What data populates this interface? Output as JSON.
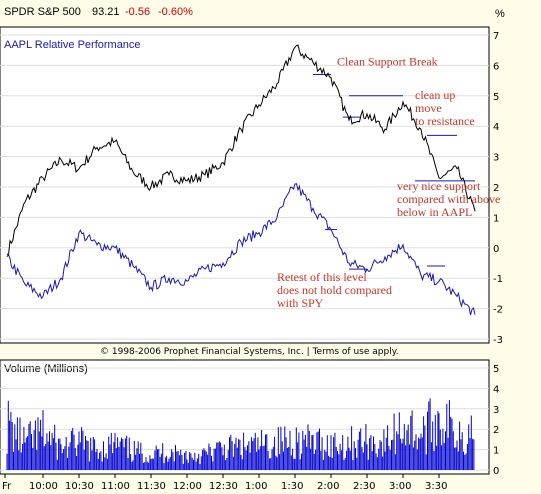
{
  "header": {
    "symbol": "SPDR S&P 500",
    "last": "93.21",
    "change": "-0.56",
    "change_pct": "-0.60%",
    "unit": "%"
  },
  "copyright": "© 1998-2006 Prophet Financial Systems, Inc. | Terms of use apply.",
  "colors": {
    "background": "#fffde9",
    "spy_line": "#1a1aa6",
    "aapl_line": "#000000",
    "volume_bars": "#0000cc",
    "annotation": "#c0392b",
    "level_lines": "#1a1aa6"
  },
  "chart_data": [
    {
      "type": "line",
      "title": "",
      "ylabel": "%",
      "ylim": [
        -3,
        7
      ],
      "yticks": [
        "7",
        "6",
        "5",
        "4",
        "3",
        "2",
        "1",
        "0",
        "-1",
        "-2",
        "-3"
      ],
      "xticks": [
        "Fr",
        "10:00",
        "10:30",
        "11:00",
        "11:30",
        "12:00",
        "12:30",
        "1:00",
        "1:30",
        "2:00",
        "2:30",
        "3:00",
        "3:30"
      ],
      "x": [
        "9:30",
        "9:45",
        "10:00",
        "10:15",
        "10:30",
        "10:45",
        "11:00",
        "11:15",
        "11:30",
        "11:45",
        "12:00",
        "12:15",
        "12:30",
        "12:45",
        "1:00",
        "1:15",
        "1:30",
        "1:45",
        "2:00",
        "2:15",
        "2:30",
        "2:45",
        "3:00",
        "3:15",
        "3:30",
        "3:45",
        "4:00"
      ],
      "series": [
        {
          "name": "AAPL Relative Performance",
          "color": "#000000",
          "values": [
            -0.2,
            1.5,
            2.3,
            2.9,
            2.6,
            3.3,
            3.5,
            2.5,
            2.0,
            2.4,
            2.2,
            2.4,
            2.8,
            3.9,
            4.7,
            5.4,
            6.6,
            6.1,
            5.6,
            4.2,
            4.4,
            3.9,
            4.8,
            3.9,
            2.3,
            2.6,
            1.2
          ]
        },
        {
          "name": "",
          "color": "#1a1aa6",
          "values": [
            -0.3,
            -1.2,
            -1.6,
            -1.0,
            0.5,
            0.1,
            0.0,
            -0.6,
            -1.3,
            -1.0,
            -1.1,
            -0.7,
            -0.5,
            0.2,
            0.5,
            1.0,
            2.1,
            1.3,
            0.6,
            -0.5,
            -0.7,
            -0.3,
            0.1,
            -0.9,
            -1.1,
            -1.6,
            -2.2
          ]
        }
      ],
      "levels": [
        {
          "y": 5.7,
          "x_start": "1:45",
          "x_end": "2:00"
        },
        {
          "y": 5.0,
          "x_start": "2:15",
          "x_end": "3:00"
        },
        {
          "y": 4.3,
          "x_start": "2:10",
          "x_end": "2:25"
        },
        {
          "y": 3.7,
          "x_start": "3:20",
          "x_end": "3:45"
        },
        {
          "y": 2.2,
          "x_start": "3:10",
          "x_end": "4:00"
        },
        {
          "y": 0.6,
          "x_start": "1:55",
          "x_end": "2:05"
        },
        {
          "y": -0.6,
          "x_start": "3:20",
          "x_end": "3:35"
        },
        {
          "y": -0.7,
          "x_start": "2:15",
          "x_end": "2:30"
        }
      ],
      "annotations": [
        {
          "lines": [
            "Clean Support Break"
          ],
          "x": "2:05",
          "y": 6.0
        },
        {
          "lines": [
            "clean up",
            "move",
            "to resistance"
          ],
          "x": "3:10",
          "y": 4.9
        },
        {
          "lines": [
            "very nice support",
            "compared with above",
            "below in AAPL"
          ],
          "x": "2:55",
          "y": 1.9
        },
        {
          "lines": [
            "Retest of this level",
            "does not hold compared",
            "with SPY"
          ],
          "x": "1:15",
          "y": -1.1
        }
      ]
    },
    {
      "type": "bar",
      "title": "Volume (Millions)",
      "ylim": [
        0,
        5
      ],
      "yticks": [
        "5",
        "4",
        "3",
        "2",
        "1",
        "0"
      ],
      "x": [
        "9:30",
        "9:45",
        "10:00",
        "10:15",
        "10:30",
        "10:45",
        "11:00",
        "11:15",
        "11:30",
        "11:45",
        "12:00",
        "12:15",
        "12:30",
        "12:45",
        "1:00",
        "1:15",
        "1:30",
        "1:45",
        "2:00",
        "2:15",
        "2:30",
        "2:45",
        "3:00",
        "3:15",
        "3:30",
        "3:45",
        "4:00"
      ],
      "values": [
        3.2,
        1.9,
        2.6,
        1.6,
        1.9,
        1.4,
        1.8,
        1.3,
        1.1,
        1.3,
        1.0,
        1.1,
        1.5,
        1.6,
        1.7,
        1.9,
        2.1,
        1.9,
        1.8,
        1.9,
        2.0,
        1.8,
        3.2,
        2.4,
        3.7,
        2.6,
        2.9
      ]
    }
  ]
}
